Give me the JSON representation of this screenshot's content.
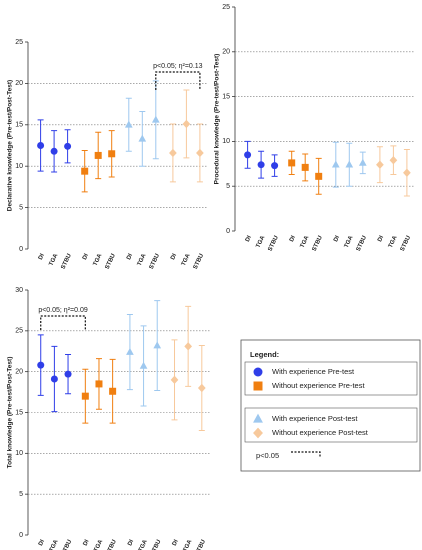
{
  "chart_data": [
    {
      "type": "errorbar",
      "y_label": "Declarative knowledge (Pre-test/Post-Test)",
      "categories": [
        "DI",
        "TGA",
        "STBU",
        "DI",
        "TGA",
        "STBU",
        "DI",
        "TGA",
        "STBU",
        "DI",
        "TGA",
        "STBU"
      ],
      "ylim": [
        0,
        25
      ],
      "yticks": [
        0,
        5,
        10,
        15,
        20,
        25
      ],
      "grid": true,
      "annotation": "p<0.05; η²=0.13",
      "series": [
        {
          "name": "With experience Pre-test",
          "color": "#2f3ee8",
          "marker": "circle",
          "values": [
            12.5,
            11.8,
            12.4,
            null,
            null,
            null,
            null,
            null,
            null,
            null,
            null,
            null
          ],
          "errors": [
            3.1,
            2.5,
            2.0,
            null,
            null,
            null,
            null,
            null,
            null,
            null,
            null,
            null
          ]
        },
        {
          "name": "Without experience Pre-test",
          "color": "#f07f10",
          "marker": "square",
          "values": [
            null,
            null,
            null,
            9.4,
            11.3,
            11.5,
            null,
            null,
            null,
            null,
            null,
            null
          ],
          "errors": [
            null,
            null,
            null,
            2.5,
            2.8,
            2.8,
            null,
            null,
            null,
            null,
            null,
            null
          ]
        },
        {
          "name": "With experience Post-test",
          "color": "#9ec8ef",
          "marker": "triangle",
          "values": [
            null,
            null,
            null,
            null,
            null,
            null,
            15.0,
            13.3,
            15.6,
            null,
            null,
            null
          ],
          "errors": [
            null,
            null,
            null,
            null,
            null,
            null,
            3.2,
            3.3,
            4.7,
            null,
            null,
            null
          ]
        },
        {
          "name": "Without experience Post-test",
          "color": "#f7c99c",
          "marker": "diamond",
          "values": [
            null,
            null,
            null,
            null,
            null,
            null,
            null,
            null,
            null,
            11.6,
            15.1,
            11.6
          ],
          "errors": [
            null,
            null,
            null,
            null,
            null,
            null,
            null,
            null,
            null,
            3.5,
            4.1,
            3.5
          ]
        }
      ]
    },
    {
      "type": "errorbar",
      "y_label": "Procedural knowledge (Pre-test/Post-Test)",
      "categories": [
        "DI",
        "TGA",
        "STBU",
        "DI",
        "TGA",
        "STBU",
        "DI",
        "TGA",
        "STBU",
        "DI",
        "TGA",
        "STBU"
      ],
      "ylim": [
        0,
        25
      ],
      "yticks": [
        0,
        5,
        10,
        15,
        20,
        25
      ],
      "grid": true,
      "series": [
        {
          "color": "#2f3ee8",
          "marker": "circle",
          "values": [
            8.5,
            7.4,
            7.3,
            null,
            null,
            null,
            null,
            null,
            null,
            null,
            null,
            null
          ],
          "errors": [
            1.5,
            1.5,
            1.2,
            null,
            null,
            null,
            null,
            null,
            null,
            null,
            null,
            null
          ]
        },
        {
          "color": "#f07f10",
          "marker": "square",
          "values": [
            null,
            null,
            null,
            7.6,
            7.1,
            6.1,
            null,
            null,
            null,
            null,
            null,
            null
          ],
          "errors": [
            null,
            null,
            null,
            1.3,
            1.5,
            2.0,
            null,
            null,
            null,
            null,
            null,
            null
          ]
        },
        {
          "color": "#9ec8ef",
          "marker": "triangle",
          "values": [
            null,
            null,
            null,
            null,
            null,
            null,
            7.4,
            7.4,
            7.6,
            null,
            null,
            null
          ],
          "errors": [
            null,
            null,
            null,
            null,
            null,
            null,
            2.5,
            2.4,
            1.2,
            null,
            null,
            null
          ]
        },
        {
          "color": "#f7c99c",
          "marker": "diamond",
          "values": [
            null,
            null,
            null,
            null,
            null,
            null,
            null,
            null,
            null,
            7.4,
            7.9,
            6.5
          ],
          "errors": [
            null,
            null,
            null,
            null,
            null,
            null,
            null,
            null,
            null,
            2.0,
            1.6,
            2.6
          ]
        }
      ]
    },
    {
      "type": "errorbar",
      "y_label": "Total knowledge (Pre-test/Post-Test)",
      "categories": [
        "DI",
        "TGA",
        "STBU",
        "DI",
        "TGA",
        "STBU",
        "DI",
        "TGA",
        "STBU",
        "DI",
        "TGA",
        "STBU"
      ],
      "ylim": [
        0,
        30
      ],
      "yticks": [
        0,
        5,
        10,
        15,
        20,
        25,
        30
      ],
      "grid": true,
      "annotation": "p<0.05; η²=0.09",
      "series": [
        {
          "color": "#2f3ee8",
          "marker": "circle",
          "values": [
            20.8,
            19.1,
            19.7,
            null,
            null,
            null,
            null,
            null,
            null,
            null,
            null,
            null
          ],
          "errors": [
            3.7,
            4.0,
            2.4,
            null,
            null,
            null,
            null,
            null,
            null,
            null,
            null,
            null
          ]
        },
        {
          "color": "#f07f10",
          "marker": "square",
          "values": [
            null,
            null,
            null,
            17.0,
            18.5,
            17.6,
            null,
            null,
            null,
            null,
            null,
            null
          ],
          "errors": [
            null,
            null,
            null,
            3.3,
            3.1,
            3.9,
            null,
            null,
            null,
            null,
            null,
            null
          ]
        },
        {
          "color": "#9ec8ef",
          "marker": "triangle",
          "values": [
            null,
            null,
            null,
            null,
            null,
            null,
            22.4,
            20.7,
            23.2,
            null,
            null,
            null
          ],
          "errors": [
            null,
            null,
            null,
            null,
            null,
            null,
            4.6,
            4.9,
            5.5,
            null,
            null,
            null
          ]
        },
        {
          "color": "#f7c99c",
          "marker": "diamond",
          "values": [
            null,
            null,
            null,
            null,
            null,
            null,
            null,
            null,
            null,
            19.0,
            23.1,
            18.0
          ],
          "errors": [
            null,
            null,
            null,
            null,
            null,
            null,
            null,
            null,
            null,
            4.9,
            4.9,
            5.2
          ]
        }
      ]
    }
  ],
  "legend": {
    "title": "Legend:",
    "significance": "p<0.05"
  }
}
